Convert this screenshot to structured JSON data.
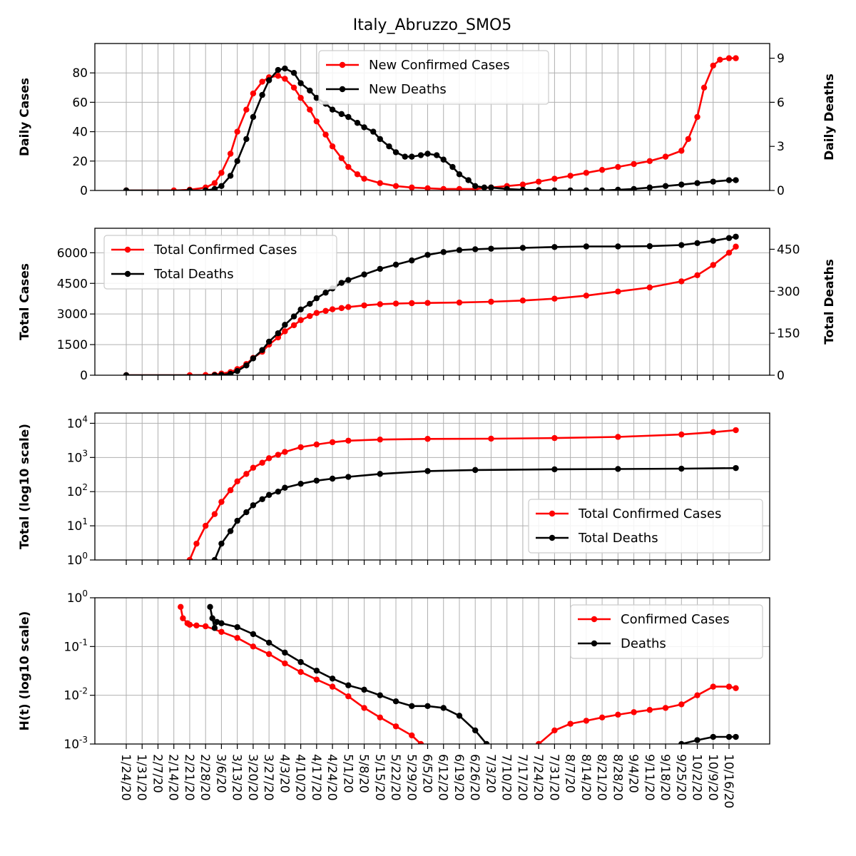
{
  "chart_data": {
    "title": "Italy_Abruzzo_SMO5",
    "dates": [
      "1/24/20",
      "1/31/20",
      "2/7/20",
      "2/14/20",
      "2/21/20",
      "2/28/20",
      "3/6/20",
      "3/13/20",
      "3/20/20",
      "3/27/20",
      "4/3/20",
      "4/10/20",
      "4/17/20",
      "4/24/20",
      "5/1/20",
      "5/8/20",
      "5/15/20",
      "5/22/20",
      "5/29/20",
      "6/5/20",
      "6/12/20",
      "6/19/20",
      "6/26/20",
      "7/3/20",
      "7/10/20",
      "7/17/20",
      "7/24/20",
      "7/31/20",
      "8/7/20",
      "8/14/20",
      "8/21/20",
      "8/28/20",
      "9/4/20",
      "9/11/20",
      "9/18/20",
      "9/25/20",
      "10/2/20",
      "10/9/20",
      "10/16/20"
    ],
    "colors": {
      "cases": "#ff0000",
      "deaths": "#000000",
      "grid": "#b0b0b0"
    },
    "panels": [
      {
        "type": "line",
        "ylabel": "Daily Cases",
        "ylabel_right": "Daily Deaths",
        "ylim": [
          0,
          100
        ],
        "yticks": [
          0,
          20,
          40,
          60,
          80
        ],
        "ylim_right": [
          0,
          10
        ],
        "yticks_right": [
          0,
          3,
          6,
          9
        ],
        "grid": true,
        "legend_position": "top-center",
        "series": [
          {
            "name": "New Confirmed Cases",
            "axis": "left",
            "color": "#ff0000",
            "x": [
              "1/24/20",
              "2/14/20",
              "2/21/20",
              "2/28/20",
              "3/3/20",
              "3/6/20",
              "3/10/20",
              "3/13/20",
              "3/17/20",
              "3/20/20",
              "3/24/20",
              "3/27/20",
              "3/31/20",
              "4/3/20",
              "4/7/20",
              "4/10/20",
              "4/14/20",
              "4/17/20",
              "4/21/20",
              "4/24/20",
              "4/28/20",
              "5/1/20",
              "5/5/20",
              "5/8/20",
              "5/15/20",
              "5/22/20",
              "5/29/20",
              "6/5/20",
              "6/12/20",
              "6/19/20",
              "6/26/20",
              "7/3/20",
              "7/10/20",
              "7/17/20",
              "7/24/20",
              "7/31/20",
              "8/7/20",
              "8/14/20",
              "8/21/20",
              "8/28/20",
              "9/4/20",
              "9/11/20",
              "9/18/20",
              "9/25/20",
              "9/28/20",
              "10/2/20",
              "10/5/20",
              "10/9/20",
              "10/12/20",
              "10/16/20",
              "10/19/20"
            ],
            "y": [
              0,
              0,
              0.5,
              2,
              5,
              12,
              25,
              40,
              55,
              66,
              74,
              77,
              78,
              76,
              70,
              63,
              55,
              47,
              38,
              30,
              22,
              16,
              11,
              8,
              5,
              3,
              2,
              1.5,
              1,
              1,
              1,
              2,
              3,
              4,
              6,
              8,
              10,
              12,
              14,
              16,
              18,
              20,
              23,
              27,
              35,
              50,
              70,
              85,
              89,
              90,
              90
            ]
          },
          {
            "name": "New Deaths",
            "axis": "right",
            "color": "#000000",
            "x": [
              "1/24/20",
              "2/21/20",
              "2/28/20",
              "3/3/20",
              "3/6/20",
              "3/10/20",
              "3/13/20",
              "3/17/20",
              "3/20/20",
              "3/24/20",
              "3/27/20",
              "3/31/20",
              "4/3/20",
              "4/7/20",
              "4/10/20",
              "4/14/20",
              "4/17/20",
              "4/21/20",
              "4/24/20",
              "4/28/20",
              "5/1/20",
              "5/5/20",
              "5/8/20",
              "5/12/20",
              "5/15/20",
              "5/19/20",
              "5/22/20",
              "5/26/20",
              "5/29/20",
              "6/2/20",
              "6/5/20",
              "6/9/20",
              "6/12/20",
              "6/16/20",
              "6/19/20",
              "6/23/20",
              "6/26/20",
              "6/30/20",
              "7/3/20",
              "7/10/20",
              "7/17/20",
              "7/24/20",
              "7/31/20",
              "8/7/20",
              "8/14/20",
              "8/21/20",
              "8/28/20",
              "9/4/20",
              "9/11/20",
              "9/18/20",
              "9/25/20",
              "10/2/20",
              "10/9/20",
              "10/16/20",
              "10/19/20"
            ],
            "y": [
              0,
              0,
              0,
              0.1,
              0.3,
              1,
              2,
              3.5,
              5,
              6.5,
              7.5,
              8.2,
              8.3,
              8,
              7.3,
              6.8,
              6.3,
              5.9,
              5.5,
              5.2,
              5,
              4.6,
              4.3,
              4,
              3.5,
              3,
              2.6,
              2.3,
              2.3,
              2.4,
              2.5,
              2.4,
              2.1,
              1.6,
              1.1,
              0.7,
              0.3,
              0.2,
              0.2,
              0.1,
              0.05,
              0.02,
              0,
              0,
              0,
              0,
              0.05,
              0.1,
              0.2,
              0.3,
              0.4,
              0.5,
              0.6,
              0.7,
              0.7
            ]
          }
        ]
      },
      {
        "type": "line",
        "ylabel": "Total Cases",
        "ylabel_right": "Total Deaths",
        "ylim": [
          0,
          7200
        ],
        "yticks": [
          0,
          1500,
          3000,
          4500,
          6000
        ],
        "ylim_right": [
          0,
          525
        ],
        "yticks_right": [
          0,
          150,
          300,
          450
        ],
        "grid": true,
        "legend_position": "top-left",
        "series": [
          {
            "name": "Total Confirmed Cases",
            "axis": "left",
            "color": "#ff0000",
            "x": [
              "1/24/20",
              "2/21/20",
              "2/28/20",
              "3/3/20",
              "3/6/20",
              "3/10/20",
              "3/13/20",
              "3/17/20",
              "3/20/20",
              "3/24/20",
              "3/27/20",
              "3/31/20",
              "4/3/20",
              "4/7/20",
              "4/10/20",
              "4/14/20",
              "4/17/20",
              "4/21/20",
              "4/24/20",
              "4/28/20",
              "5/1/20",
              "5/8/20",
              "5/15/20",
              "5/22/20",
              "5/29/20",
              "6/5/20",
              "6/19/20",
              "7/3/20",
              "7/17/20",
              "7/31/20",
              "8/14/20",
              "8/28/20",
              "9/11/20",
              "9/25/20",
              "10/2/20",
              "10/9/20",
              "10/16/20",
              "10/19/20"
            ],
            "y": [
              0,
              0,
              10,
              30,
              80,
              150,
              300,
              550,
              850,
              1150,
              1500,
              1850,
              2150,
              2450,
              2700,
              2900,
              3050,
              3150,
              3230,
              3290,
              3340,
              3420,
              3480,
              3510,
              3530,
              3540,
              3560,
              3600,
              3660,
              3750,
              3900,
              4100,
              4300,
              4600,
              4900,
              5400,
              6000,
              6300
            ]
          },
          {
            "name": "Total Deaths",
            "axis": "right",
            "color": "#000000",
            "x": [
              "1/24/20",
              "3/3/20",
              "3/6/20",
              "3/10/20",
              "3/13/20",
              "3/17/20",
              "3/20/20",
              "3/24/20",
              "3/27/20",
              "3/31/20",
              "4/3/20",
              "4/7/20",
              "4/10/20",
              "4/14/20",
              "4/17/20",
              "4/21/20",
              "4/24/20",
              "4/28/20",
              "5/1/20",
              "5/8/20",
              "5/15/20",
              "5/22/20",
              "5/29/20",
              "6/5/20",
              "6/12/20",
              "6/19/20",
              "6/26/20",
              "7/3/20",
              "7/17/20",
              "7/31/20",
              "8/14/20",
              "8/28/20",
              "9/11/20",
              "9/25/20",
              "10/2/20",
              "10/9/20",
              "10/16/20",
              "10/19/20"
            ],
            "y": [
              0,
              0,
              1,
              5,
              15,
              35,
              60,
              90,
              120,
              150,
              180,
              210,
              235,
              255,
              275,
              295,
              310,
              330,
              340,
              360,
              380,
              395,
              410,
              430,
              440,
              447,
              450,
              452,
              455,
              458,
              460,
              460,
              461,
              465,
              472,
              480,
              490,
              495
            ]
          }
        ]
      },
      {
        "type": "line",
        "ylabel": "Total (log10 scale)",
        "yscale": "log",
        "ylim": [
          1,
          20000
        ],
        "yticks": [
          1,
          10,
          100,
          1000,
          10000
        ],
        "ytick_labels": [
          "10^0",
          "10^1",
          "10^2",
          "10^3",
          "10^4"
        ],
        "grid": true,
        "legend_position": "bottom-right",
        "series": [
          {
            "name": "Total Confirmed Cases",
            "color": "#ff0000",
            "x": [
              "2/21/20",
              "2/24/20",
              "2/28/20",
              "3/3/20",
              "3/6/20",
              "3/10/20",
              "3/13/20",
              "3/17/20",
              "3/20/20",
              "3/24/20",
              "3/27/20",
              "3/31/20",
              "4/3/20",
              "4/10/20",
              "4/17/20",
              "4/24/20",
              "5/1/20",
              "5/15/20",
              "6/5/20",
              "7/3/20",
              "7/31/20",
              "8/28/20",
              "9/25/20",
              "10/9/20",
              "10/19/20"
            ],
            "y": [
              1,
              3,
              10,
              22,
              50,
              110,
              200,
              330,
              500,
              700,
              950,
              1200,
              1450,
              2000,
              2400,
              2800,
              3100,
              3350,
              3500,
              3550,
              3700,
              4000,
              4700,
              5500,
              6300
            ]
          },
          {
            "name": "Total Deaths",
            "color": "#000000",
            "x": [
              "3/3/20",
              "3/6/20",
              "3/10/20",
              "3/13/20",
              "3/17/20",
              "3/20/20",
              "3/24/20",
              "3/27/20",
              "3/31/20",
              "4/3/20",
              "4/10/20",
              "4/17/20",
              "4/24/20",
              "5/1/20",
              "5/15/20",
              "6/5/20",
              "6/26/20",
              "7/31/20",
              "8/28/20",
              "9/25/20",
              "10/19/20"
            ],
            "y": [
              1,
              3,
              7,
              14,
              25,
              40,
              60,
              80,
              100,
              130,
              170,
              210,
              240,
              270,
              330,
              400,
              430,
              450,
              460,
              470,
              490
            ]
          }
        ]
      },
      {
        "type": "line",
        "ylabel": "H(t) (log10 scale)",
        "yscale": "log",
        "ylim": [
          0.001,
          1
        ],
        "yticks": [
          0.001,
          0.01,
          0.1,
          1
        ],
        "ytick_labels": [
          "10^-3",
          "10^-2",
          "10^-1",
          "10^0"
        ],
        "grid": true,
        "legend_position": "top-right",
        "series": [
          {
            "name": "Confirmed Cases",
            "color": "#ff0000",
            "x": [
              "2/17/20",
              "2/18/20",
              "2/20/20",
              "2/21/20",
              "2/24/20",
              "2/28/20",
              "3/6/20",
              "3/13/20",
              "3/20/20",
              "3/27/20",
              "4/3/20",
              "4/10/20",
              "4/17/20",
              "4/24/20",
              "5/1/20",
              "5/8/20",
              "5/15/20",
              "5/22/20",
              "5/29/20",
              "6/2/20",
              "null",
              "7/24/20",
              "7/31/20",
              "8/7/20",
              "8/14/20",
              "8/21/20",
              "8/28/20",
              "9/4/20",
              "9/11/20",
              "9/18/20",
              "9/25/20",
              "10/2/20",
              "10/9/20",
              "10/16/20",
              "10/19/20"
            ],
            "y": [
              0.65,
              0.38,
              0.3,
              0.28,
              0.27,
              0.26,
              0.2,
              0.15,
              0.1,
              0.07,
              0.045,
              0.03,
              0.021,
              0.015,
              0.0095,
              0.0055,
              0.0035,
              0.0023,
              0.0015,
              0.001,
              null,
              0.001,
              0.0019,
              0.0026,
              0.003,
              0.0035,
              0.004,
              0.0045,
              0.005,
              0.0055,
              0.0065,
              0.01,
              0.015,
              0.015,
              0.014
            ]
          },
          {
            "name": "Deaths",
            "color": "#000000",
            "x": [
              "3/1/20",
              "3/2/20",
              "3/3/20",
              "3/4/20",
              "3/6/20",
              "3/13/20",
              "3/20/20",
              "3/27/20",
              "4/3/20",
              "4/10/20",
              "4/17/20",
              "4/24/20",
              "5/1/20",
              "5/8/20",
              "5/15/20",
              "5/22/20",
              "5/29/20",
              "6/5/20",
              "6/12/20",
              "6/19/20",
              "6/26/20",
              "7/1/20",
              "null",
              "9/25/20",
              "10/2/20",
              "10/9/20",
              "10/16/20",
              "10/19/20"
            ],
            "y": [
              0.65,
              0.38,
              0.24,
              0.32,
              0.3,
              0.25,
              0.18,
              0.12,
              0.075,
              0.048,
              0.032,
              0.022,
              0.016,
              0.013,
              0.01,
              0.0075,
              0.006,
              0.006,
              0.0055,
              0.0038,
              0.0019,
              0.001,
              null,
              0.001,
              0.0012,
              0.0014,
              0.0014,
              0.0014
            ]
          }
        ]
      }
    ]
  }
}
